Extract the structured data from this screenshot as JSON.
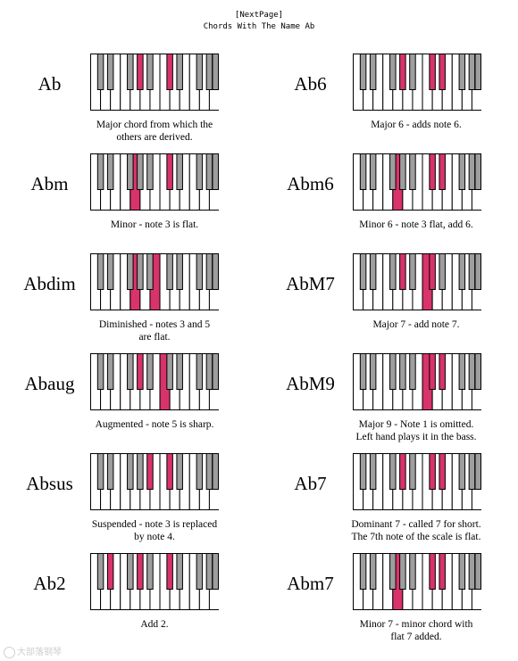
{
  "header": {
    "nav_link": "[NextPage]",
    "title": "Chords With The Name Ab"
  },
  "colors": {
    "highlight": "#d8336a",
    "black_key": "#9e9e9e",
    "outline": "#000000"
  },
  "keyboard": {
    "white_keys": 13,
    "black_key_positions": [
      1,
      2,
      4,
      5,
      6,
      8,
      9,
      11,
      12,
      13
    ]
  },
  "chords": [
    {
      "name": "Ab",
      "caption": [
        "Major chord from which the",
        "others are derived."
      ],
      "white": [],
      "black": [
        5,
        8
      ]
    },
    {
      "name": "Ab6",
      "caption": [
        "Major 6 - adds note 6."
      ],
      "white": [],
      "black": [
        5,
        8,
        9
      ]
    },
    {
      "name": "Abm",
      "caption": [
        "Minor - note 3 is flat."
      ],
      "white": [
        4
      ],
      "black": [
        8
      ]
    },
    {
      "name": "Abm6",
      "caption": [
        "Minor 6 - note 3 flat, add 6."
      ],
      "white": [
        4
      ],
      "black": [
        8,
        9
      ]
    },
    {
      "name": "Abdim",
      "caption": [
        "Diminished - notes 3 and 5",
        "are flat."
      ],
      "white": [
        4,
        6
      ],
      "black": []
    },
    {
      "name": "AbM7",
      "caption": [
        "Major 7 - add note 7."
      ],
      "white": [
        7
      ],
      "black": [
        5,
        8
      ]
    },
    {
      "name": "Abaug",
      "caption": [
        "Augmented - note 5 is sharp."
      ],
      "white": [
        7
      ],
      "black": [
        5
      ]
    },
    {
      "name": "AbM9",
      "caption": [
        "Major 9 - Note 1 is omitted.",
        "Left hand plays it in the bass."
      ],
      "white": [
        7
      ],
      "black": [
        8,
        9
      ]
    },
    {
      "name": "Absus",
      "caption": [
        "Suspended - note 3 is replaced",
        "by note 4."
      ],
      "white": [],
      "black": [
        6,
        8
      ]
    },
    {
      "name": "Ab7",
      "caption": [
        "Dominant 7 - called 7 for short.",
        "The 7th note of the scale is flat."
      ],
      "white": [],
      "black": [
        5,
        8,
        9
      ]
    },
    {
      "name": "Ab2",
      "caption": [
        "Add 2."
      ],
      "white": [],
      "black": [
        2,
        5,
        8
      ]
    },
    {
      "name": "Abm7",
      "caption": [
        "Minor 7 - minor chord with",
        "flat 7 added."
      ],
      "white": [
        4
      ],
      "black": [
        8,
        9
      ]
    }
  ],
  "watermark": "大部落钢琴"
}
